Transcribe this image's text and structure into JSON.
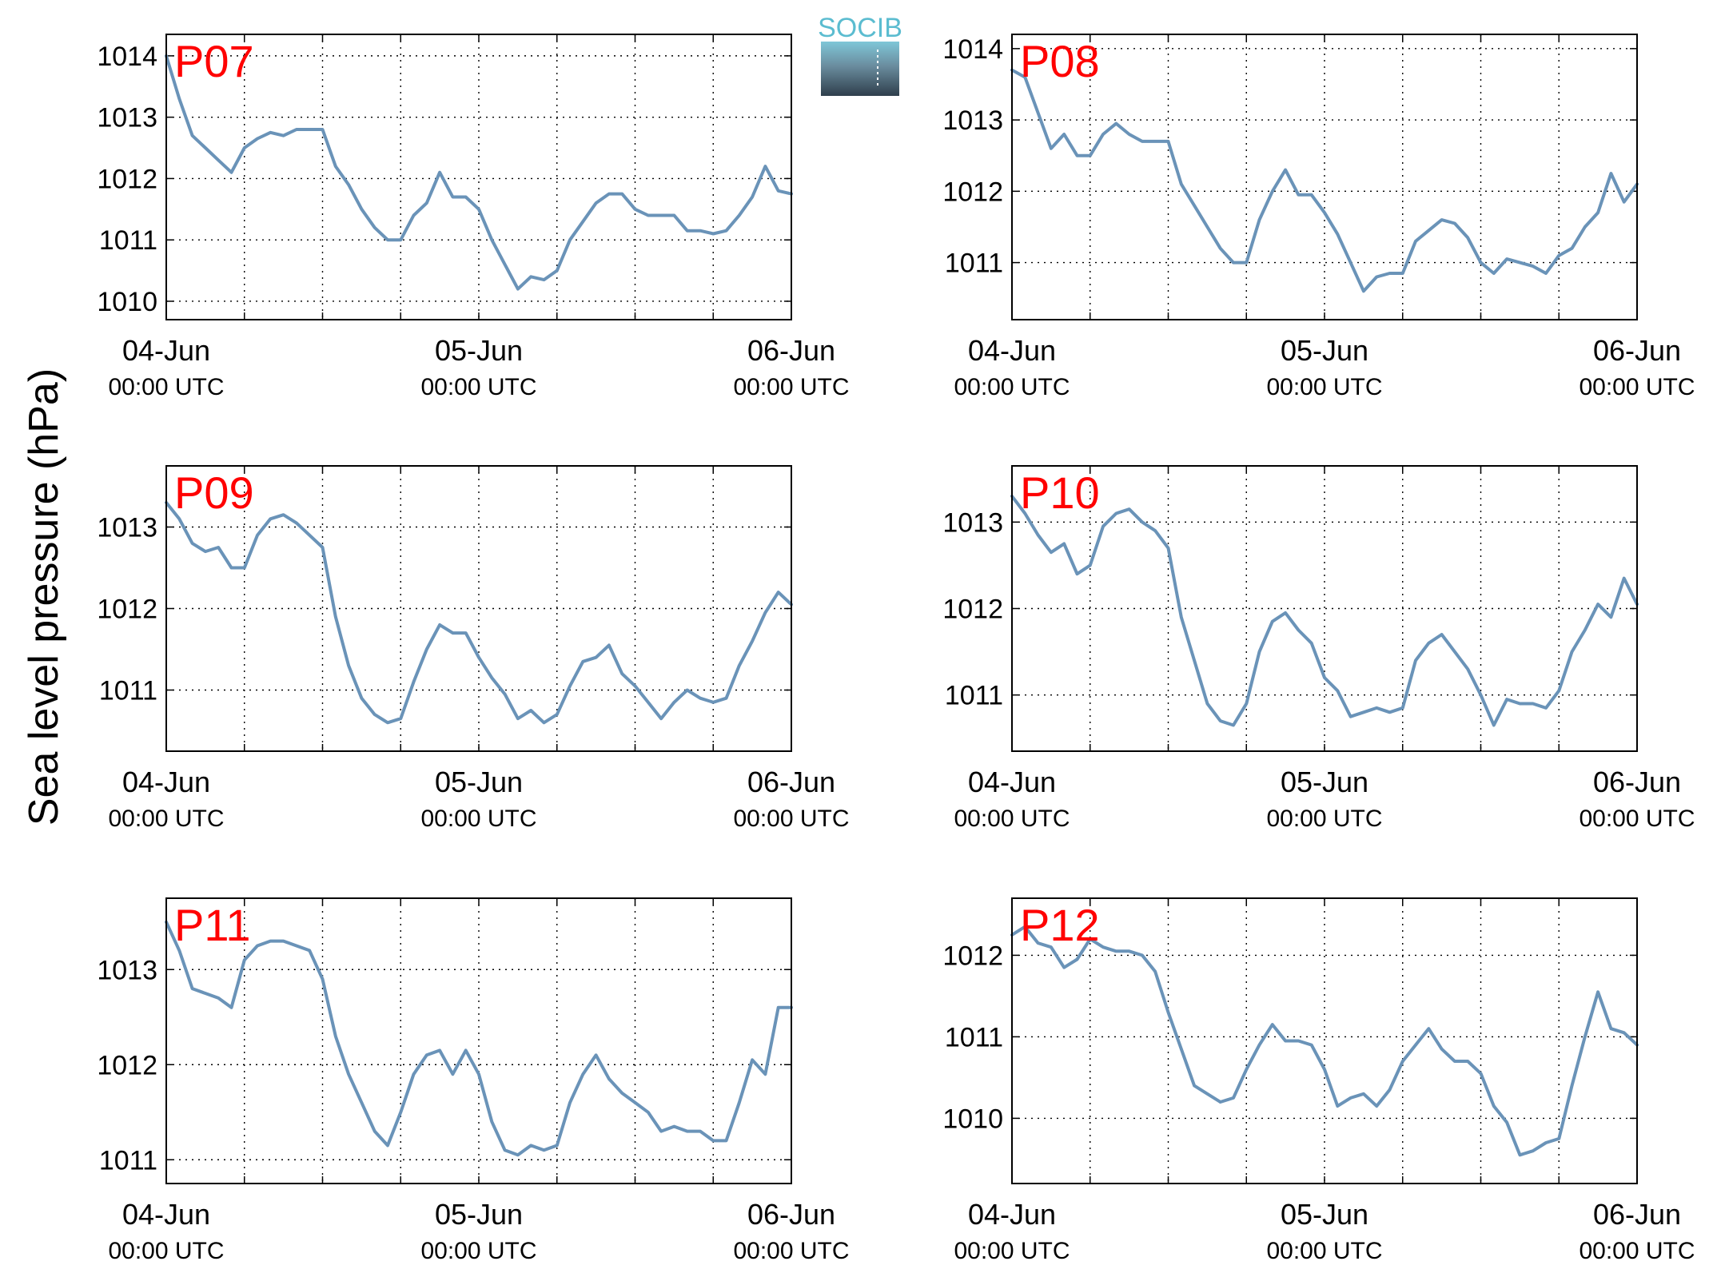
{
  "figure": {
    "ylabel": "Sea level pressure (hPa)",
    "logo_text": "SOCIB",
    "line_color": "#6a93b8",
    "label_color": "#ff0000",
    "grid": true
  },
  "chart_data": [
    {
      "type": "line",
      "label": "P07",
      "xticks": [
        {
          "day": "04-Jun",
          "time": "00:00 UTC"
        },
        {
          "day": "05-Jun",
          "time": "00:00 UTC"
        },
        {
          "day": "06-Jun",
          "time": "00:00 UTC"
        }
      ],
      "xlim": [
        0,
        48
      ],
      "ylim": [
        1009.7,
        1014.35
      ],
      "yticks": [
        1010,
        1011,
        1012,
        1013,
        1014
      ],
      "series": [
        {
          "x": [
            0,
            1,
            2,
            3,
            4,
            5,
            6,
            7,
            8,
            9,
            10,
            11,
            12,
            13,
            14,
            15,
            16,
            17,
            18,
            19,
            20,
            21,
            22,
            23,
            24,
            25,
            26,
            27,
            28,
            29,
            30,
            31,
            32,
            33,
            34,
            35,
            36,
            37,
            38,
            39,
            40,
            41,
            42,
            43,
            44,
            45,
            46,
            47,
            48
          ],
          "y": [
            1014.0,
            1013.3,
            1012.7,
            1012.5,
            1012.3,
            1012.1,
            1012.5,
            1012.65,
            1012.75,
            1012.7,
            1012.8,
            1012.8,
            1012.8,
            1012.2,
            1011.9,
            1011.5,
            1011.2,
            1011.0,
            1011.0,
            1011.4,
            1011.6,
            1012.1,
            1011.7,
            1011.7,
            1011.5,
            1011.0,
            1010.6,
            1010.2,
            1010.4,
            1010.35,
            1010.5,
            1011.0,
            1011.3,
            1011.6,
            1011.75,
            1011.75,
            1011.5,
            1011.4,
            1011.4,
            1011.4,
            1011.15,
            1011.15,
            1011.1,
            1011.15,
            1011.4,
            1011.7,
            1012.2,
            1011.8,
            1011.75
          ]
        }
      ]
    },
    {
      "type": "line",
      "label": "P08",
      "xticks": [
        {
          "day": "04-Jun",
          "time": "00:00 UTC"
        },
        {
          "day": "05-Jun",
          "time": "00:00 UTC"
        },
        {
          "day": "06-Jun",
          "time": "00:00 UTC"
        }
      ],
      "xlim": [
        0,
        48
      ],
      "ylim": [
        1010.2,
        1014.2
      ],
      "yticks": [
        1011,
        1012,
        1013,
        1014
      ],
      "series": [
        {
          "x": [
            0,
            1,
            2,
            3,
            4,
            5,
            6,
            7,
            8,
            9,
            10,
            11,
            12,
            13,
            14,
            15,
            16,
            17,
            18,
            19,
            20,
            21,
            22,
            23,
            24,
            25,
            26,
            27,
            28,
            29,
            30,
            31,
            32,
            33,
            34,
            35,
            36,
            37,
            38,
            39,
            40,
            41,
            42,
            43,
            44,
            45,
            46,
            47,
            48
          ],
          "y": [
            1013.7,
            1013.6,
            1013.1,
            1012.6,
            1012.8,
            1012.5,
            1012.5,
            1012.8,
            1012.95,
            1012.8,
            1012.7,
            1012.7,
            1012.7,
            1012.1,
            1011.8,
            1011.5,
            1011.2,
            1011.0,
            1011.0,
            1011.6,
            1012.0,
            1012.3,
            1011.95,
            1011.95,
            1011.7,
            1011.4,
            1011.0,
            1010.6,
            1010.8,
            1010.85,
            1010.85,
            1011.3,
            1011.45,
            1011.6,
            1011.55,
            1011.35,
            1011.0,
            1010.85,
            1011.05,
            1011.0,
            1010.95,
            1010.85,
            1011.1,
            1011.2,
            1011.5,
            1011.7,
            1012.25,
            1011.85,
            1012.1
          ]
        }
      ]
    },
    {
      "type": "line",
      "label": "P09",
      "xticks": [
        {
          "day": "04-Jun",
          "time": "00:00 UTC"
        },
        {
          "day": "05-Jun",
          "time": "00:00 UTC"
        },
        {
          "day": "06-Jun",
          "time": "00:00 UTC"
        }
      ],
      "xlim": [
        0,
        48
      ],
      "ylim": [
        1010.25,
        1013.75
      ],
      "yticks": [
        1011,
        1012,
        1013
      ],
      "series": [
        {
          "x": [
            0,
            1,
            2,
            3,
            4,
            5,
            6,
            7,
            8,
            9,
            10,
            11,
            12,
            13,
            14,
            15,
            16,
            17,
            18,
            19,
            20,
            21,
            22,
            23,
            24,
            25,
            26,
            27,
            28,
            29,
            30,
            31,
            32,
            33,
            34,
            35,
            36,
            37,
            38,
            39,
            40,
            41,
            42,
            43,
            44,
            45,
            46,
            47,
            48
          ],
          "y": [
            1013.3,
            1013.1,
            1012.8,
            1012.7,
            1012.75,
            1012.5,
            1012.5,
            1012.9,
            1013.1,
            1013.15,
            1013.05,
            1012.9,
            1012.75,
            1011.9,
            1011.3,
            1010.9,
            1010.7,
            1010.6,
            1010.65,
            1011.1,
            1011.5,
            1011.8,
            1011.7,
            1011.7,
            1011.4,
            1011.15,
            1010.95,
            1010.65,
            1010.75,
            1010.6,
            1010.7,
            1011.05,
            1011.35,
            1011.4,
            1011.55,
            1011.2,
            1011.05,
            1010.85,
            1010.65,
            1010.85,
            1011.0,
            1010.9,
            1010.85,
            1010.9,
            1011.3,
            1011.6,
            1011.95,
            1012.2,
            1012.05
          ]
        }
      ]
    },
    {
      "type": "line",
      "label": "P10",
      "xticks": [
        {
          "day": "04-Jun",
          "time": "00:00 UTC"
        },
        {
          "day": "05-Jun",
          "time": "00:00 UTC"
        },
        {
          "day": "06-Jun",
          "time": "00:00 UTC"
        }
      ],
      "xlim": [
        0,
        48
      ],
      "ylim": [
        1010.35,
        1013.65
      ],
      "yticks": [
        1011,
        1012,
        1013
      ],
      "series": [
        {
          "x": [
            0,
            1,
            2,
            3,
            4,
            5,
            6,
            7,
            8,
            9,
            10,
            11,
            12,
            13,
            14,
            15,
            16,
            17,
            18,
            19,
            20,
            21,
            22,
            23,
            24,
            25,
            26,
            27,
            28,
            29,
            30,
            31,
            32,
            33,
            34,
            35,
            36,
            37,
            38,
            39,
            40,
            41,
            42,
            43,
            44,
            45,
            46,
            47,
            48
          ],
          "y": [
            1013.3,
            1013.1,
            1012.85,
            1012.65,
            1012.75,
            1012.4,
            1012.5,
            1012.95,
            1013.1,
            1013.15,
            1013.0,
            1012.9,
            1012.7,
            1011.9,
            1011.4,
            1010.9,
            1010.7,
            1010.65,
            1010.9,
            1011.5,
            1011.85,
            1011.95,
            1011.75,
            1011.6,
            1011.2,
            1011.05,
            1010.75,
            1010.8,
            1010.85,
            1010.8,
            1010.85,
            1011.4,
            1011.6,
            1011.7,
            1011.5,
            1011.3,
            1011.0,
            1010.65,
            1010.95,
            1010.9,
            1010.9,
            1010.85,
            1011.05,
            1011.5,
            1011.75,
            1012.05,
            1011.9,
            1012.35,
            1012.05
          ]
        }
      ]
    },
    {
      "type": "line",
      "label": "P11",
      "xticks": [
        {
          "day": "04-Jun",
          "time": "00:00 UTC"
        },
        {
          "day": "05-Jun",
          "time": "00:00 UTC"
        },
        {
          "day": "06-Jun",
          "time": "00:00 UTC"
        }
      ],
      "xlim": [
        0,
        48
      ],
      "ylim": [
        1010.75,
        1013.75
      ],
      "yticks": [
        1011,
        1012,
        1013
      ],
      "series": [
        {
          "x": [
            0,
            1,
            2,
            3,
            4,
            5,
            6,
            7,
            8,
            9,
            10,
            11,
            12,
            13,
            14,
            15,
            16,
            17,
            18,
            19,
            20,
            21,
            22,
            23,
            24,
            25,
            26,
            27,
            28,
            29,
            30,
            31,
            32,
            33,
            34,
            35,
            36,
            37,
            38,
            39,
            40,
            41,
            42,
            43,
            44,
            45,
            46,
            47,
            48
          ],
          "y": [
            1013.5,
            1013.2,
            1012.8,
            1012.75,
            1012.7,
            1012.6,
            1013.1,
            1013.25,
            1013.3,
            1013.3,
            1013.25,
            1013.2,
            1012.9,
            1012.3,
            1011.9,
            1011.6,
            1011.3,
            1011.15,
            1011.5,
            1011.9,
            1012.1,
            1012.15,
            1011.9,
            1012.15,
            1011.9,
            1011.4,
            1011.1,
            1011.05,
            1011.15,
            1011.1,
            1011.15,
            1011.6,
            1011.9,
            1012.1,
            1011.85,
            1011.7,
            1011.6,
            1011.5,
            1011.3,
            1011.35,
            1011.3,
            1011.3,
            1011.2,
            1011.2,
            1011.6,
            1012.05,
            1011.9,
            1012.6,
            1012.6
          ]
        }
      ]
    },
    {
      "type": "line",
      "label": "P12",
      "xticks": [
        {
          "day": "04-Jun",
          "time": "00:00 UTC"
        },
        {
          "day": "05-Jun",
          "time": "00:00 UTC"
        },
        {
          "day": "06-Jun",
          "time": "00:00 UTC"
        }
      ],
      "xlim": [
        0,
        48
      ],
      "ylim": [
        1009.2,
        1012.7
      ],
      "yticks": [
        1010,
        1011,
        1012
      ],
      "series": [
        {
          "x": [
            0,
            1,
            2,
            3,
            4,
            5,
            6,
            7,
            8,
            9,
            10,
            11,
            12,
            13,
            14,
            15,
            16,
            17,
            18,
            19,
            20,
            21,
            22,
            23,
            24,
            25,
            26,
            27,
            28,
            29,
            30,
            31,
            32,
            33,
            34,
            35,
            36,
            37,
            38,
            39,
            40,
            41,
            42,
            43,
            44,
            45,
            46,
            47,
            48
          ],
          "y": [
            1012.25,
            1012.35,
            1012.15,
            1012.1,
            1011.85,
            1011.95,
            1012.2,
            1012.1,
            1012.05,
            1012.05,
            1012.0,
            1011.8,
            1011.3,
            1010.85,
            1010.4,
            1010.3,
            1010.2,
            1010.25,
            1010.6,
            1010.9,
            1011.15,
            1010.95,
            1010.95,
            1010.9,
            1010.6,
            1010.15,
            1010.25,
            1010.3,
            1010.15,
            1010.35,
            1010.7,
            1010.9,
            1011.1,
            1010.85,
            1010.7,
            1010.7,
            1010.55,
            1010.15,
            1009.95,
            1009.55,
            1009.6,
            1009.7,
            1009.75,
            1010.4,
            1011.0,
            1011.55,
            1011.1,
            1011.05,
            1010.9
          ]
        }
      ]
    }
  ]
}
